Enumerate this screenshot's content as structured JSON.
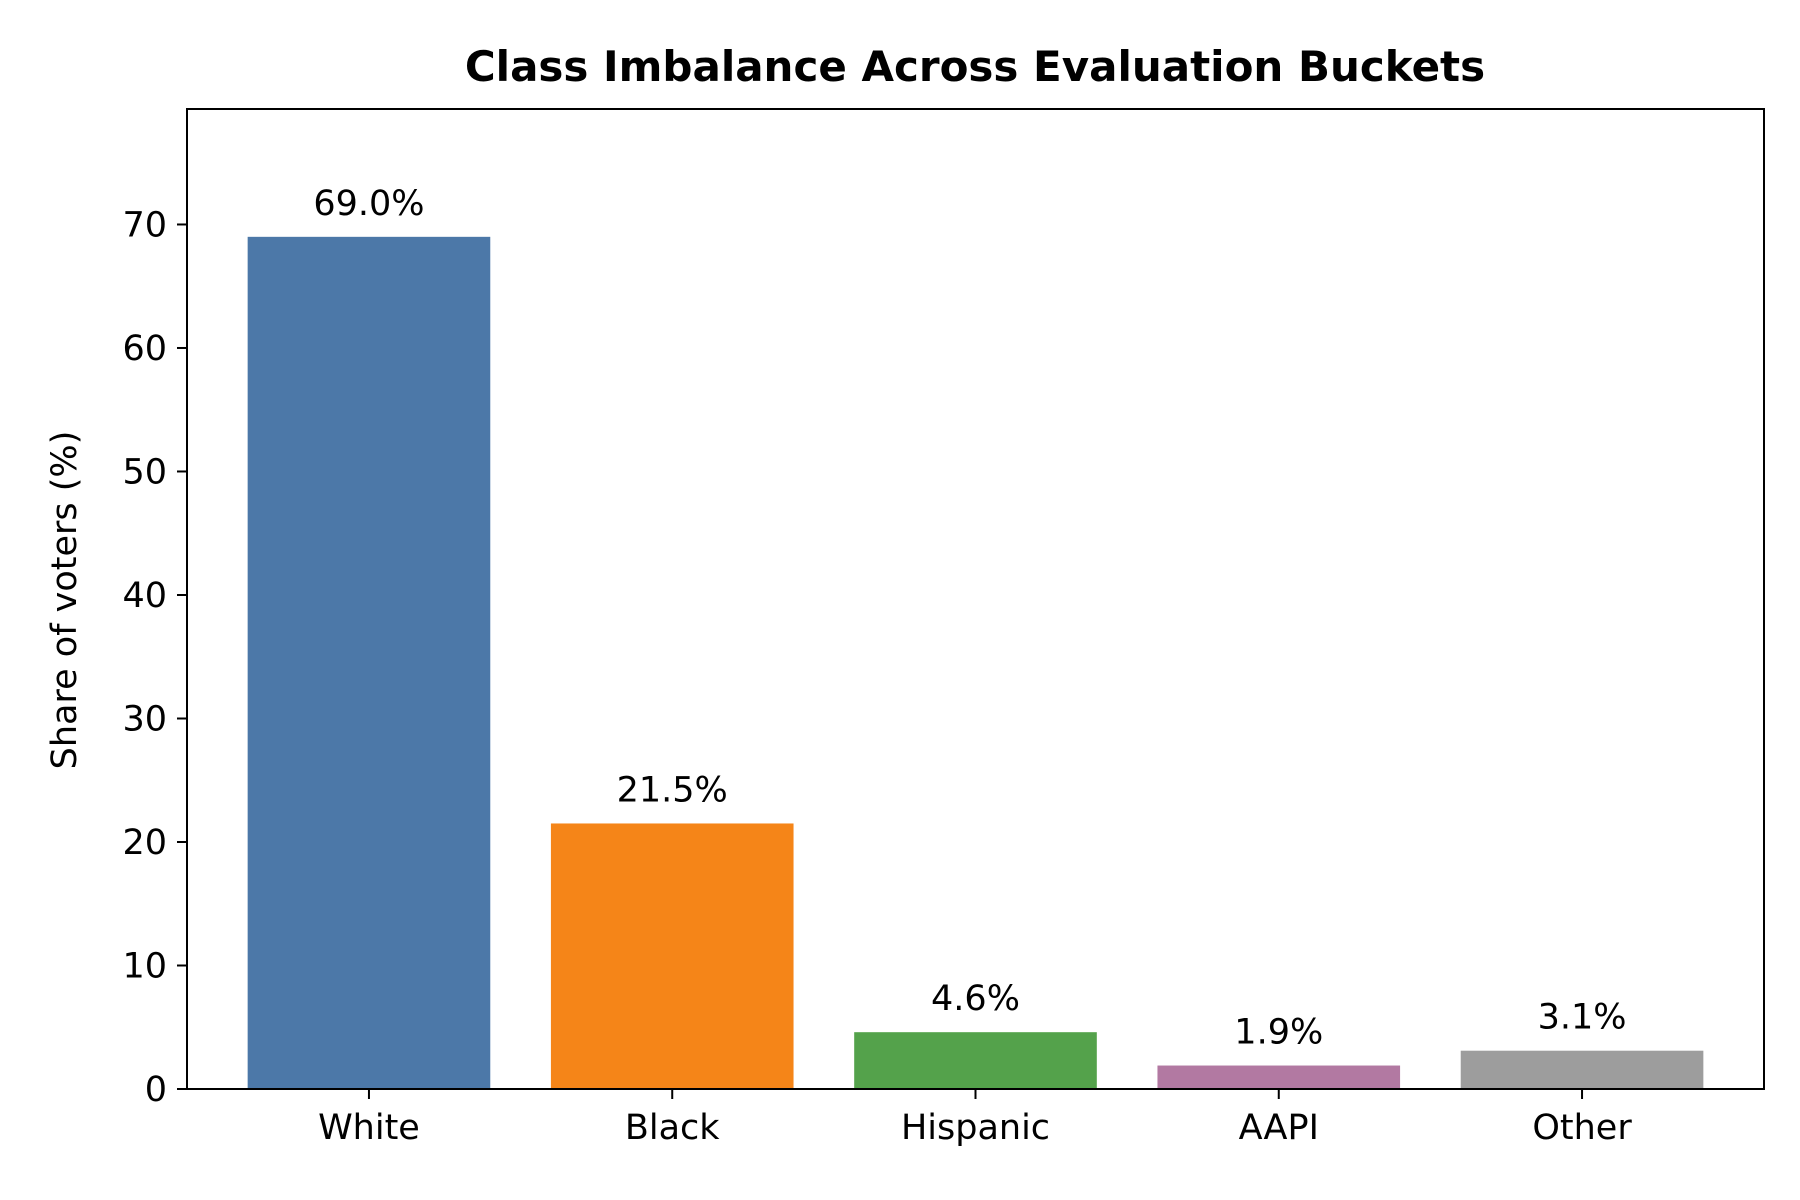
{
  "chart_data": {
    "type": "bar",
    "title": "Class Imbalance Across Evaluation Buckets",
    "xlabel": "",
    "ylabel": "Share of voters (%)",
    "categories": [
      "White",
      "Black",
      "Hispanic",
      "AAPI",
      "Other"
    ],
    "values": [
      69.0,
      21.5,
      4.6,
      1.9,
      3.1
    ],
    "data_labels": [
      "69.0%",
      "21.5%",
      "4.6%",
      "1.9%",
      "3.1%"
    ],
    "colors": [
      "#4c78a8",
      "#f58518",
      "#54a24b",
      "#b279a2",
      "#9d9d9d"
    ],
    "ylim": [
      0,
      79.35
    ],
    "yticks": [
      0,
      10,
      20,
      30,
      40,
      50,
      60,
      70
    ],
    "grid": false,
    "legend": "none"
  }
}
